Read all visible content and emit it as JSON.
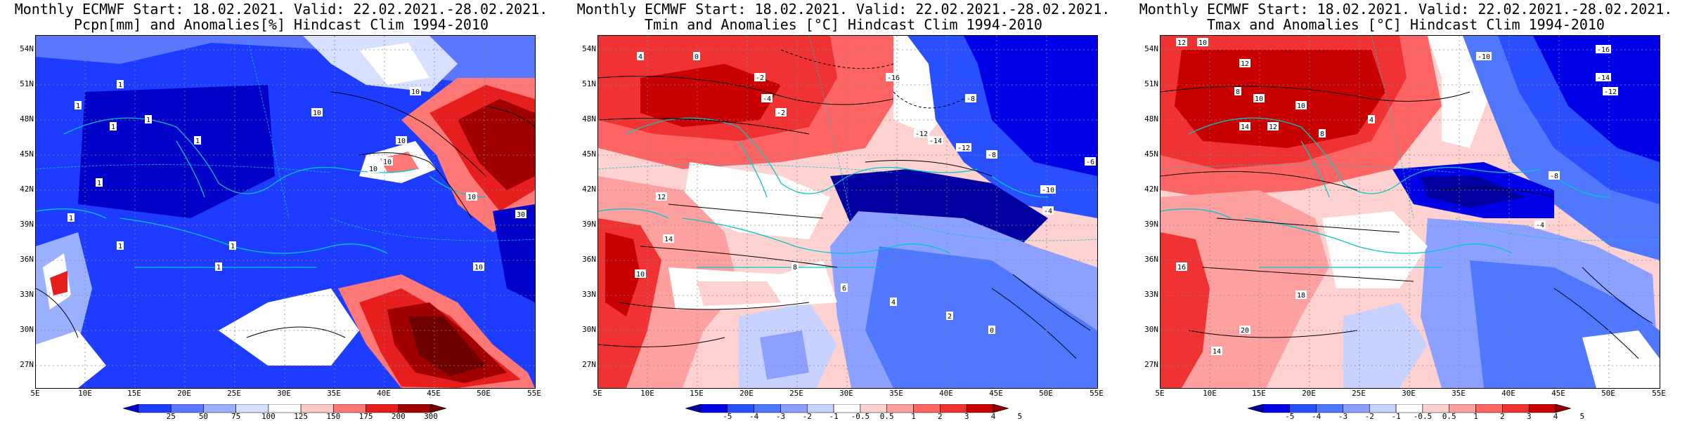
{
  "panels": [
    {
      "title_line1": "Monthly ECMWF Start: 18.02.2021. Valid: 22.02.2021.-28.02.2021.",
      "title_line2": "Pcpn[mm] and Anomalies[%] Hindcast Clim 1994-2010",
      "colorbar_labels": [
        "25",
        "50",
        "75",
        "100",
        "125",
        "150",
        "175",
        "200",
        "300"
      ],
      "colorbar_colors": [
        "#0000c8",
        "#1e3cff",
        "#5a78ff",
        "#9bb0ff",
        "#d8e0ff",
        "#ffffff",
        "#ffc8c8",
        "#ff7878",
        "#e61e1e",
        "#a00000",
        "#6e0000"
      ],
      "contour_labels": [
        "1",
        "1",
        "1",
        "1",
        "1",
        "1",
        "1",
        "1",
        "1",
        "1",
        "10",
        "10",
        "10",
        "10",
        "10",
        "10",
        "30",
        "10"
      ]
    },
    {
      "title_line1": "Monthly ECMWF Start: 18.02.2021. Valid: 22.02.2021.-28.02.2021.",
      "title_line2": "Tmin and Anomalies [°C] Hindcast Clim 1994-2010",
      "colorbar_labels": [
        "-5",
        "-4",
        "-3",
        "-2",
        "-1",
        "-0.5",
        "0.5",
        "1",
        "2",
        "3",
        "4",
        "5"
      ],
      "colorbar_colors": [
        "#0000a0",
        "#0000e6",
        "#2850ff",
        "#5078ff",
        "#8ca0ff",
        "#c8d2ff",
        "#ffffff",
        "#ffd2d2",
        "#ffa0a0",
        "#ff6464",
        "#f03232",
        "#c80000",
        "#8c0000"
      ],
      "contour_labels": [
        "4",
        "0",
        "-2",
        "-4",
        "-2",
        "-16",
        "-8",
        "-12",
        "-14",
        "-12",
        "-8",
        "-10",
        "-6",
        "-4",
        "12",
        "14",
        "10",
        "8",
        "6",
        "4",
        "2",
        "0"
      ]
    },
    {
      "title_line1": "Monthly ECMWF Start: 18.02.2021. Valid: 22.02.2021.-28.02.2021.",
      "title_line2": "Tmax and Anomalies [°C] Hindcast Clim 1994-2010",
      "colorbar_labels": [
        "-5",
        "-4",
        "-3",
        "-2",
        "-1",
        "-0.5",
        "0.5",
        "1",
        "2",
        "3",
        "4",
        "5"
      ],
      "colorbar_colors": [
        "#0000a0",
        "#0000e6",
        "#2850ff",
        "#5078ff",
        "#8ca0ff",
        "#c8d2ff",
        "#ffffff",
        "#ffd2d2",
        "#ffa0a0",
        "#ff6464",
        "#f03232",
        "#c80000",
        "#8c0000"
      ],
      "contour_labels": [
        "12",
        "10",
        "8",
        "12",
        "10",
        "-10",
        "-16",
        "-14",
        "-12",
        "14",
        "12",
        "10",
        "8",
        "4",
        "-4",
        "-8",
        "16",
        "18",
        "20",
        "14"
      ]
    }
  ],
  "axes": {
    "lat_labels": [
      "54N",
      "51N",
      "48N",
      "45N",
      "42N",
      "39N",
      "36N",
      "33N",
      "30N",
      "27N"
    ],
    "lon_labels": [
      "5E",
      "10E",
      "15E",
      "20E",
      "25E",
      "30E",
      "35E",
      "40E",
      "45E",
      "50E",
      "55E"
    ]
  }
}
